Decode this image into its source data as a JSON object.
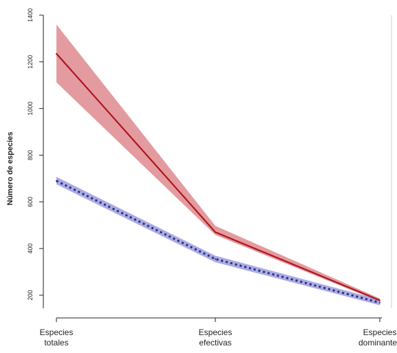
{
  "chart_data": {
    "type": "line",
    "title": "",
    "ylabel": "Número de especies",
    "xlabel": "",
    "categories": [
      [
        "Especies",
        "totales"
      ],
      [
        "Especies",
        "efectivas"
      ],
      [
        "Especies",
        "dominantes"
      ]
    ],
    "ylim": [
      100,
      1400
    ],
    "yticks": [
      200,
      400,
      600,
      800,
      1000,
      1200,
      1400
    ],
    "grid": false,
    "legend": "none",
    "series": [
      {
        "style": "solid",
        "color": "#b0141e",
        "band_color": "#d97a7f",
        "values": [
          1235,
          470,
          178
        ],
        "lower": [
          1112,
          458,
          172
        ],
        "upper": [
          1360,
          497,
          186
        ]
      },
      {
        "style": "dotted",
        "color": "#2d2d7a",
        "band_color": "#8e90dc",
        "values": [
          690,
          355,
          168
        ],
        "lower": [
          675,
          341,
          157
        ],
        "upper": [
          707,
          369,
          181
        ]
      }
    ]
  }
}
